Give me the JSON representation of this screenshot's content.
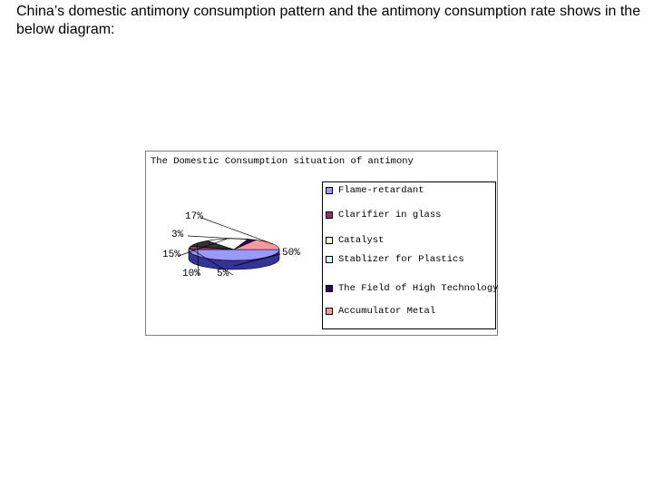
{
  "slide": {
    "text": "China’s domestic antimony consumption pattern and the antimony consumption rate shows in the below diagram:"
  },
  "chart_data": {
    "type": "pie",
    "title": "The Domestic Consumption situation of antimony",
    "legend_position": "right",
    "slices": [
      {
        "name": "Flame-retardant",
        "value": 50,
        "label": "50%",
        "color": "#9999ff",
        "side": "#333399"
      },
      {
        "name": "Clarifier in glass",
        "value": 5,
        "label": "5%",
        "color": "#993366",
        "side": "#4d1a33"
      },
      {
        "name": "Catalyst",
        "value": 10,
        "label": "10%",
        "color": "#333333",
        "side": "#1a1a1a"
      },
      {
        "name": "Stablizer for Plastics",
        "value": 15,
        "label": "15%",
        "color": "#ffffff",
        "side": "#8c8c8c"
      },
      {
        "name": "The Field of High Technology",
        "value": 3,
        "label": "3%",
        "color": "#330066",
        "side": "#1a0033"
      },
      {
        "name": "Accumulator Metal",
        "value": 17,
        "label": "17%",
        "color": "#ff9999",
        "side": "#b36b6b"
      }
    ],
    "legend": [
      {
        "label": "Flame-retardant",
        "color": "#9999ff"
      },
      {
        "label": "Clarifier in glass",
        "color": "#993366"
      },
      {
        "label": "Catalyst",
        "color": "#ffffcc"
      },
      {
        "label": "Stablizer for Plastics",
        "color": "#ccffff"
      },
      {
        "label": "The Field of High Technology",
        "color": "#330066"
      },
      {
        "label": "Accumulator Metal",
        "color": "#ff9999"
      }
    ]
  }
}
